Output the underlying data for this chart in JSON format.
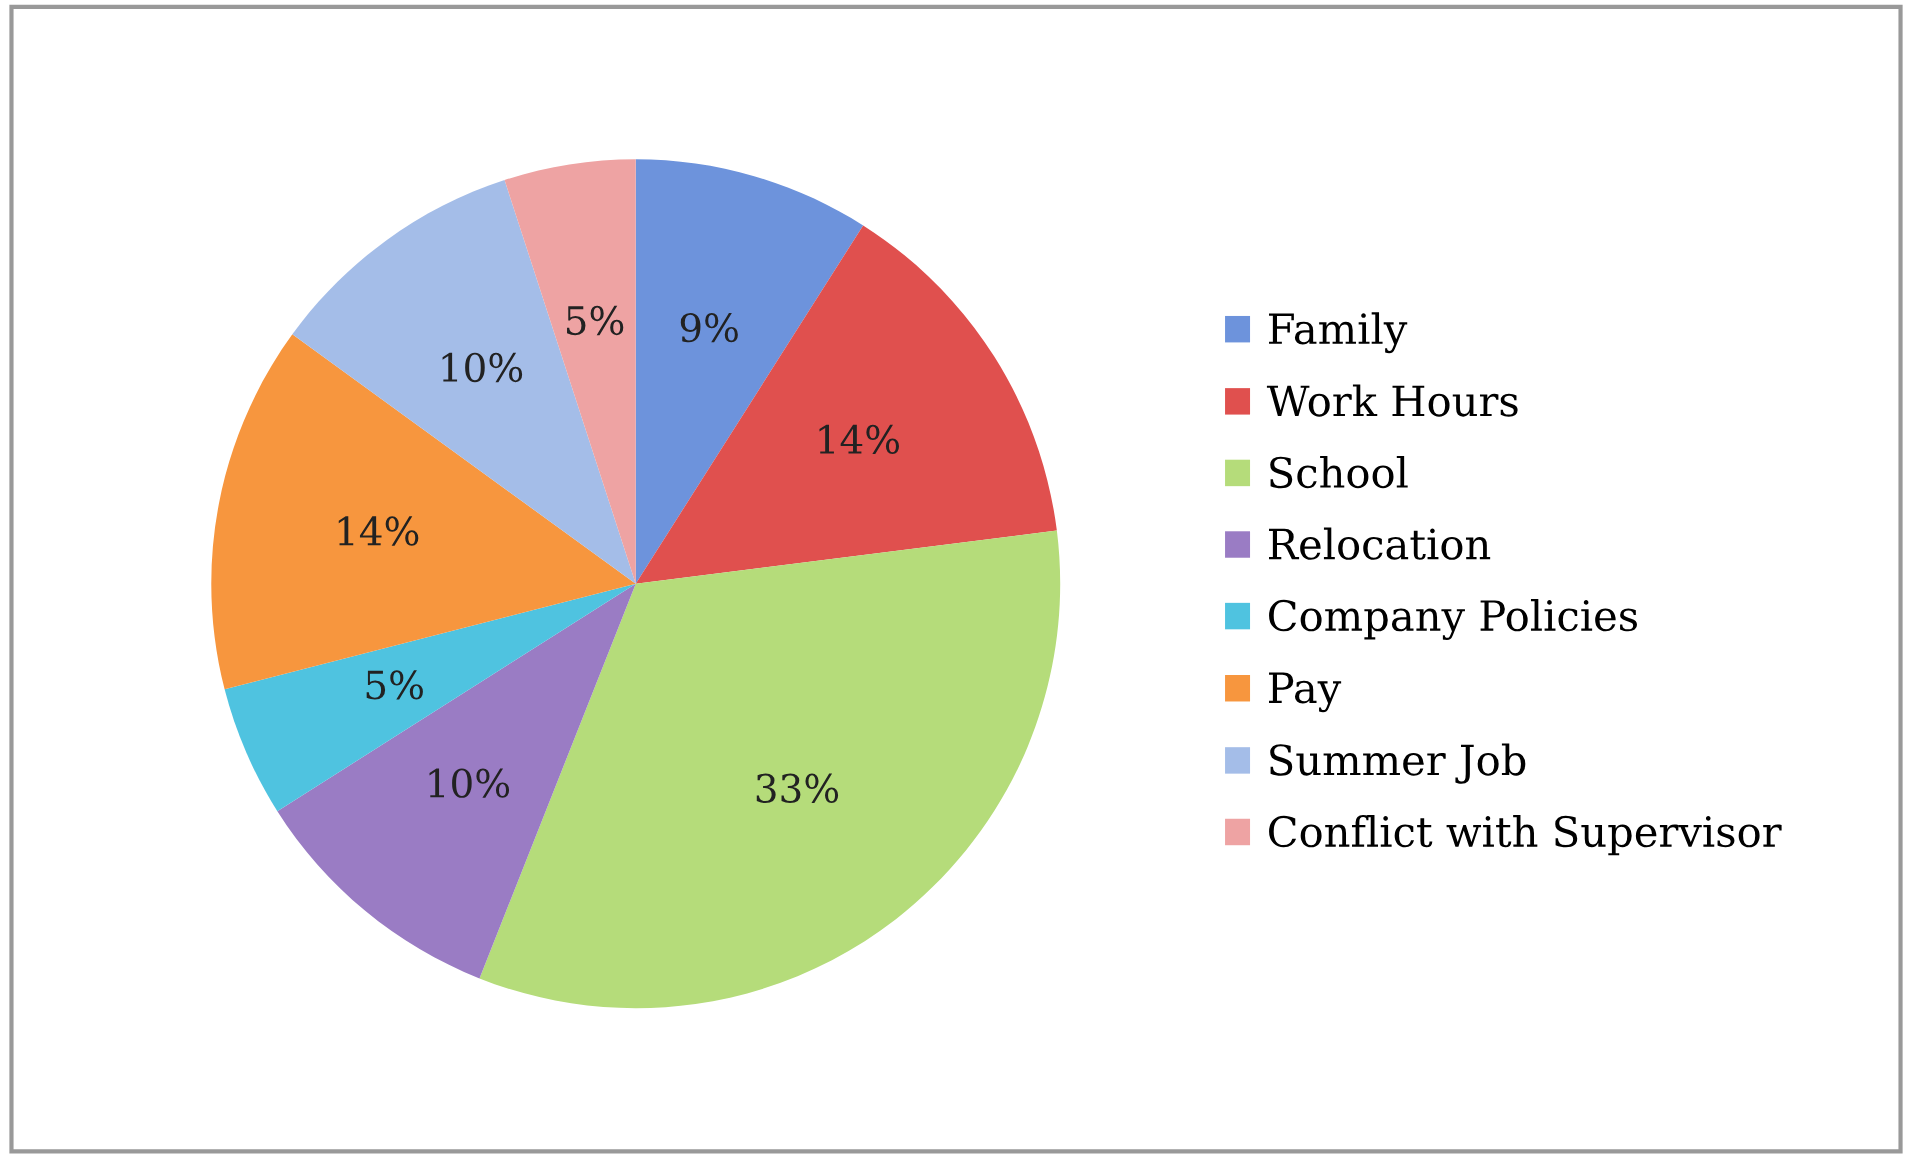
{
  "chart_data": {
    "type": "pie",
    "categories": [
      "Family",
      "Work Hours",
      "School",
      "Relocation",
      "Company Policies",
      "Pay",
      "Summer Job",
      "Conflict with Supervisor"
    ],
    "values": [
      9,
      14,
      33,
      10,
      5,
      14,
      10,
      5
    ],
    "value_labels": [
      "9%",
      "14%",
      "33%",
      "10%",
      "5%",
      "14%",
      "10%",
      "5%"
    ],
    "colors": [
      "#6d93dc",
      "#e0504e",
      "#b5dc7a",
      "#9a7cc4",
      "#4fc3e0",
      "#f7963e",
      "#a4bde8",
      "#eea3a3"
    ],
    "legend": "right"
  }
}
